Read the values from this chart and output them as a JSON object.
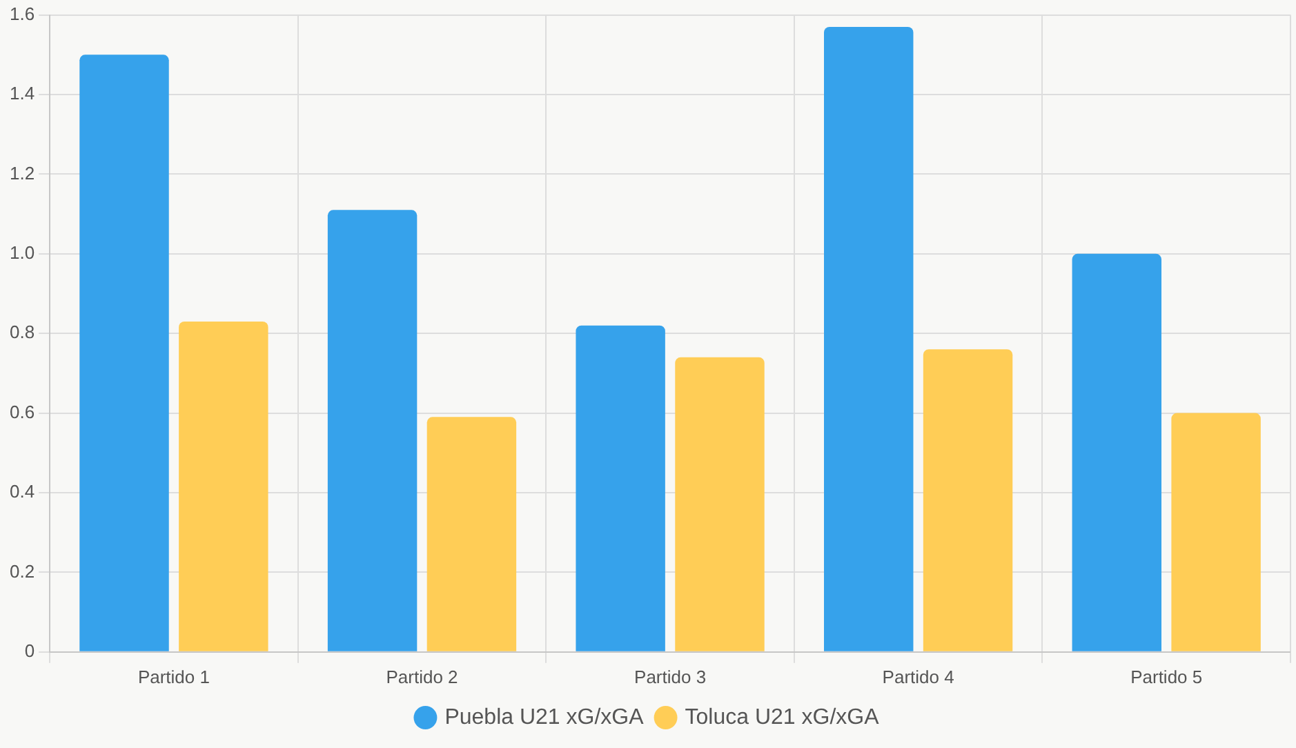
{
  "chart_data": {
    "type": "bar",
    "categories": [
      "Partido 1",
      "Partido 2",
      "Partido 3",
      "Partido 4",
      "Partido 5"
    ],
    "series": [
      {
        "name": "Puebla U21 xG/xGA",
        "color": "#36a2eb",
        "values": [
          1.5,
          1.11,
          0.82,
          1.57,
          1.0
        ]
      },
      {
        "name": "Toluca U21 xG/xGA",
        "color": "#ffcd56",
        "values": [
          0.83,
          0.59,
          0.74,
          0.76,
          0.6
        ]
      }
    ],
    "ylim": [
      0,
      1.6
    ],
    "yticks": [
      0,
      0.2,
      0.4,
      0.6,
      0.8,
      {
        "value": 1,
        "label": "1.0"
      },
      1.2,
      1.4,
      1.6
    ],
    "grid": true,
    "legend": "bottom"
  }
}
